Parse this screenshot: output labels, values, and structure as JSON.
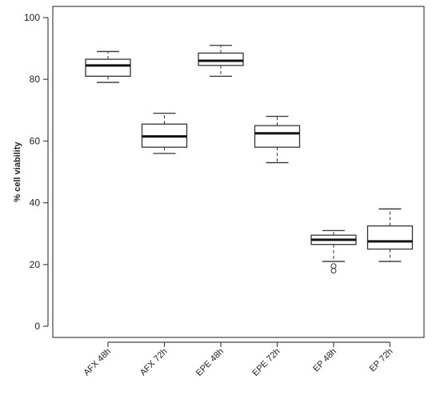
{
  "chart_data": {
    "type": "box",
    "title": "",
    "xlabel": "",
    "ylabel": "% cell viability",
    "ylim": [
      0,
      100
    ],
    "yticks": [
      0,
      20,
      40,
      60,
      80,
      100
    ],
    "grid": false,
    "categories": [
      "AFX 48h",
      "AFX 72h",
      "EPE 48h",
      "EPE 72h",
      "EP 48h",
      "EP 72h"
    ],
    "boxes": [
      {
        "category": "AFX 48h",
        "min": 79,
        "q1": 81,
        "median": 84.5,
        "q3": 86.5,
        "max": 89,
        "outliers": []
      },
      {
        "category": "AFX 72h",
        "min": 56,
        "q1": 58,
        "median": 61.5,
        "q3": 65.5,
        "max": 69,
        "outliers": []
      },
      {
        "category": "EPE 48h",
        "min": 81,
        "q1": 84.5,
        "median": 86,
        "q3": 88.5,
        "max": 91,
        "outliers": []
      },
      {
        "category": "EPE 72h",
        "min": 53,
        "q1": 58,
        "median": 62.5,
        "q3": 65,
        "max": 68,
        "outliers": []
      },
      {
        "category": "EP 48h",
        "min": 21,
        "q1": 26.5,
        "median": 28,
        "q3": 29.5,
        "max": 31,
        "outliers": [
          19.5,
          18
        ]
      },
      {
        "category": "EP 72h",
        "min": 21,
        "q1": 25,
        "median": 27.5,
        "q3": 32.5,
        "max": 38,
        "outliers": []
      }
    ],
    "colors": {
      "box_fill": "#ffffff",
      "stroke": "#333333",
      "median": "#111111"
    }
  }
}
